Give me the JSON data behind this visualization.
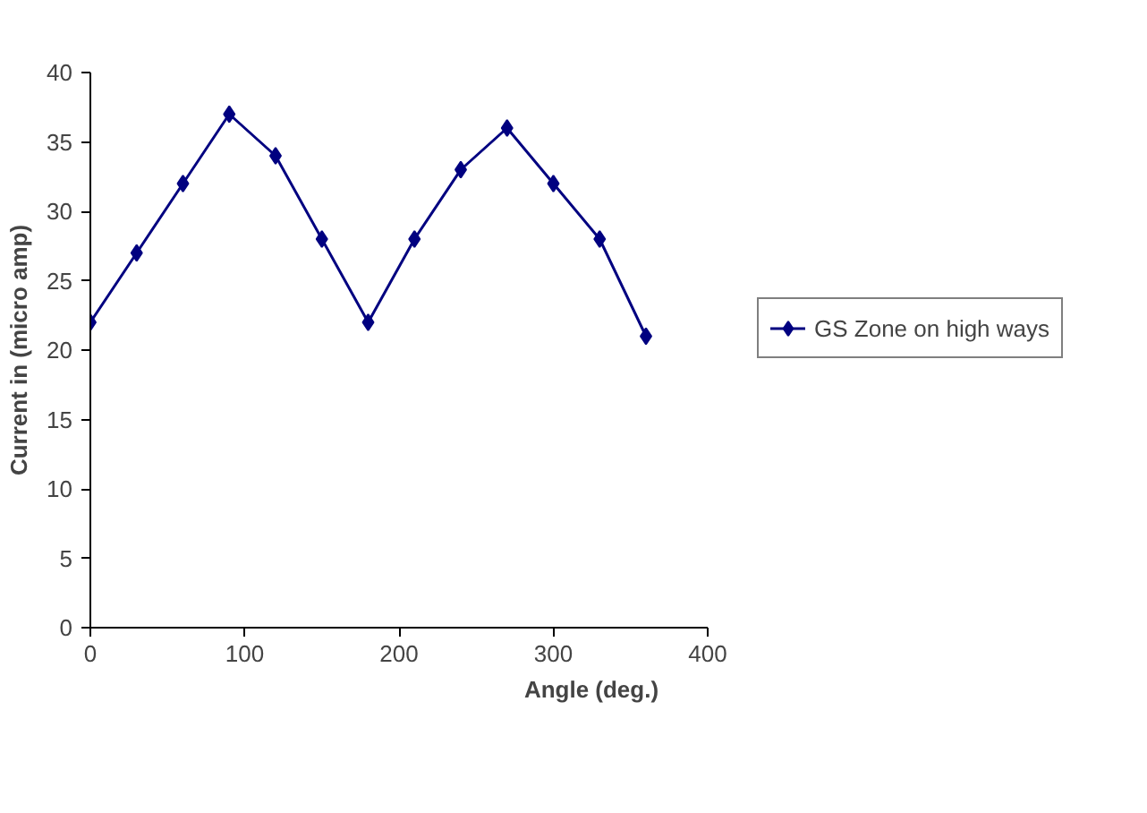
{
  "chart_data": {
    "type": "line",
    "xlabel": "Angle (deg.)",
    "ylabel": "Current in (micro amp)",
    "x": [
      0,
      30,
      60,
      90,
      120,
      150,
      180,
      210,
      240,
      270,
      300,
      330,
      360
    ],
    "series": [
      {
        "name": "GS Zone on high ways",
        "color": "#000080",
        "values": [
          22,
          27,
          32,
          37,
          34,
          28,
          22,
          28,
          33,
          36,
          32,
          28,
          21
        ]
      }
    ],
    "xlim": [
      0,
      400
    ],
    "xticks": [
      0,
      100,
      200,
      300,
      400
    ],
    "ylim": [
      0,
      40
    ],
    "yticks": [
      0,
      5,
      10,
      15,
      20,
      25,
      30,
      35,
      40
    ],
    "grid": false,
    "legend": "right",
    "marker": "diamond",
    "line_style": "solid"
  }
}
